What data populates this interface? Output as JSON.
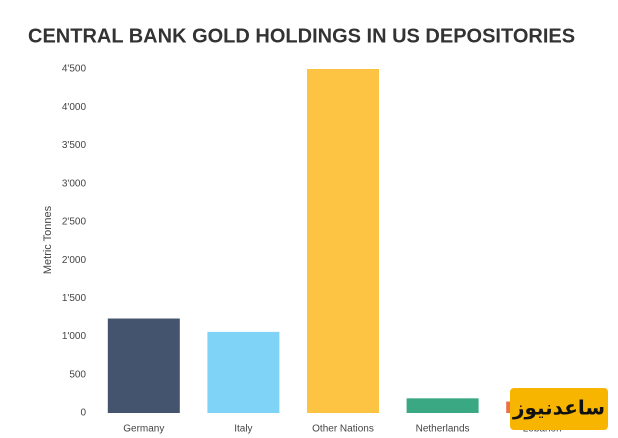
{
  "chart_data": {
    "type": "bar",
    "title": "CENTRAL BANK GOLD HOLDINGS IN US DEPOSITORIES",
    "y_label": "Metric Tonnes",
    "categories": [
      "Germany",
      "Italy",
      "Other Nations",
      "Netherlands",
      "Lebanon"
    ],
    "values": [
      1236,
      1061,
      4500,
      192,
      150
    ],
    "colors": [
      "#44546f",
      "#7fd3f7",
      "#fdc443",
      "#3aa882",
      "#e8724a"
    ],
    "ylim": [
      0,
      4500
    ],
    "yticks": [
      0,
      500,
      {
        "value": 1000,
        "label": "1'000"
      },
      {
        "value": 1500,
        "label": "1'500"
      },
      {
        "value": 2000,
        "label": "2'000"
      },
      {
        "value": 2500,
        "label": "2'500"
      },
      {
        "value": 3000,
        "label": "3'000"
      },
      {
        "value": 3500,
        "label": "3'500"
      },
      {
        "value": 4000,
        "label": "4'000"
      },
      {
        "value": 4500,
        "label": "4'500"
      }
    ],
    "grid": false
  },
  "watermark": "ساعدنیوز"
}
